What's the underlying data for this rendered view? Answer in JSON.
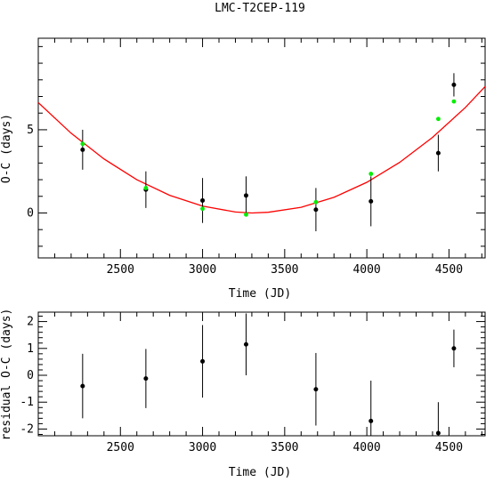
{
  "title": "LMC-T2CEP-119",
  "colors": {
    "fit": "#ff0000",
    "model_points": "#00ee00",
    "data": "#000000"
  },
  "chart_data": [
    {
      "type": "scatter",
      "xlabel": "Time (JD)",
      "ylabel": "O-C (days)",
      "xlim": [
        2000,
        4720
      ],
      "ylim": [
        -2.7,
        10.5
      ],
      "xticks": [
        2500,
        3000,
        3500,
        4000,
        4500
      ],
      "yticks": [
        0,
        5
      ],
      "grid": false,
      "series": [
        {
          "kind": "errorbar",
          "x": [
            2270,
            2655,
            3000,
            3265,
            3690,
            4025,
            4435,
            4530
          ],
          "y": [
            3.8,
            1.4,
            0.75,
            1.05,
            0.2,
            0.7,
            3.6,
            7.7
          ],
          "yerr": [
            1.2,
            1.1,
            1.35,
            1.15,
            1.3,
            1.5,
            1.1,
            0.7
          ]
        },
        {
          "kind": "model-points",
          "x": [
            2270,
            2655,
            3000,
            3265,
            3690,
            4025,
            4435,
            4530
          ],
          "y": [
            4.15,
            1.5,
            0.25,
            -0.1,
            0.65,
            2.35,
            5.65,
            6.7
          ]
        },
        {
          "kind": "fit-curve",
          "x": [
            2000,
            2200,
            2400,
            2600,
            2800,
            3000,
            3200,
            3300,
            3400,
            3600,
            3800,
            4000,
            4200,
            4400,
            4600,
            4720
          ],
          "y": [
            6.63,
            4.79,
            3.25,
            2.0,
            1.06,
            0.41,
            0.06,
            0.0,
            0.04,
            0.34,
            0.94,
            1.84,
            3.04,
            4.54,
            6.34,
            7.6
          ]
        }
      ]
    },
    {
      "type": "scatter",
      "xlabel": "Time (JD)",
      "ylabel": "residual O-C (days)",
      "xlim": [
        2000,
        4720
      ],
      "ylim": [
        -2.25,
        2.35
      ],
      "xticks": [
        2500,
        3000,
        3500,
        4000,
        4500
      ],
      "yticks": [
        -2,
        -1,
        0,
        1,
        2
      ],
      "grid": false,
      "series": [
        {
          "kind": "errorbar",
          "x": [
            2270,
            2655,
            3000,
            3265,
            3690,
            4025,
            4435,
            4530
          ],
          "y": [
            -0.4,
            -0.12,
            0.52,
            1.15,
            -0.52,
            -1.7,
            -2.15,
            1.0
          ],
          "yerr": [
            1.2,
            1.1,
            1.35,
            1.15,
            1.35,
            1.5,
            1.15,
            0.7
          ]
        }
      ]
    }
  ]
}
